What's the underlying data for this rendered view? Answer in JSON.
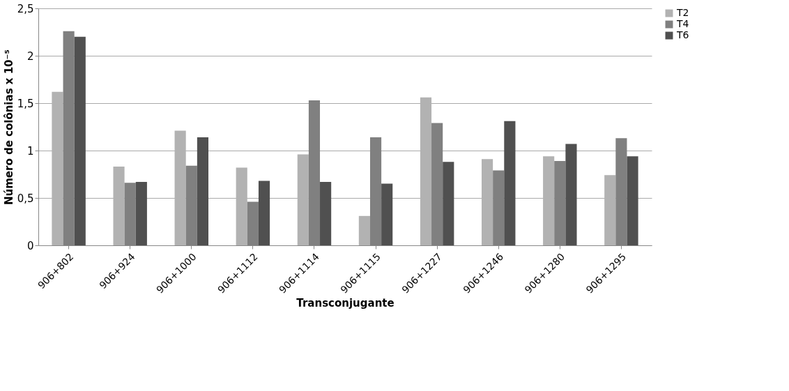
{
  "chart_data": {
    "type": "bar",
    "xlabel": "Transconjugante",
    "ylabel": "Número de colônias x 10⁻⁵",
    "categories": [
      "906+802",
      "906+924",
      "906+1000",
      "906+1112",
      "906+1114",
      "906+1115",
      "906+1227",
      "906+1246",
      "906+1280",
      "906+1295"
    ],
    "series": [
      {
        "name": "T2",
        "color": "#b2b2b2",
        "values": [
          1.62,
          0.83,
          1.21,
          0.82,
          0.96,
          0.31,
          1.56,
          0.91,
          0.94,
          0.74
        ]
      },
      {
        "name": "T4",
        "color": "#808080",
        "values": [
          2.26,
          0.66,
          0.84,
          0.46,
          1.53,
          1.14,
          1.29,
          0.79,
          0.89,
          1.13
        ]
      },
      {
        "name": "T6",
        "color": "#505050",
        "values": [
          2.2,
          0.67,
          1.14,
          0.68,
          0.67,
          0.65,
          0.88,
          1.31,
          1.07,
          0.94
        ]
      }
    ],
    "ylim": [
      0,
      2.5
    ],
    "yticks": [
      0,
      {
        "value": 0.5,
        "label": "0,5"
      },
      1,
      {
        "value": 1.5,
        "label": "1,5"
      },
      2,
      {
        "value": 2.5,
        "label": "2,5"
      }
    ],
    "grid": "y",
    "legend": "right"
  }
}
